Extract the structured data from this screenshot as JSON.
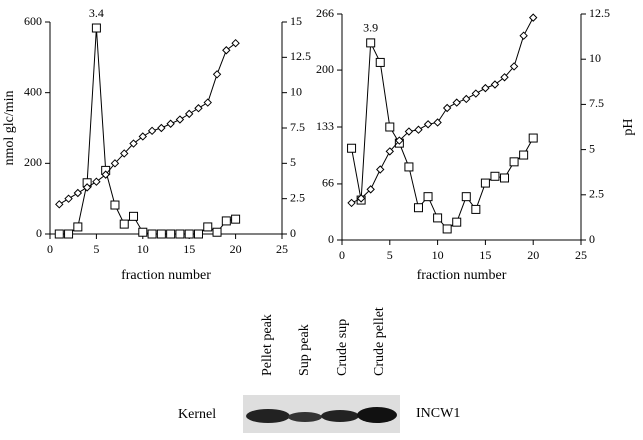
{
  "chart_data": [
    {
      "type": "line",
      "annotation": "3.4",
      "ylabel": "nmol glc/min",
      "xlabel": "fraction number",
      "xlim": [
        0,
        25
      ],
      "xticks": [
        0,
        5,
        10,
        15,
        20,
        25
      ],
      "ylim": [
        0,
        600
      ],
      "yticks": [
        0,
        200,
        400,
        600
      ],
      "y2lim": [
        0,
        15
      ],
      "y2ticks": [
        0,
        2.5,
        5,
        7.5,
        10,
        12.5,
        15
      ],
      "series": [
        {
          "marker": "square",
          "color": "#000",
          "x": [
            1,
            2,
            3,
            4,
            5,
            6,
            7,
            8,
            9,
            10,
            11,
            12,
            13,
            14,
            15,
            16,
            17,
            18,
            19,
            20
          ],
          "values": [
            0,
            0,
            20,
            145,
            583,
            180,
            82,
            28,
            50,
            5,
            0,
            0,
            0,
            0,
            0,
            0,
            20,
            5,
            37,
            42
          ]
        },
        {
          "marker": "diamond",
          "color": "#000",
          "axis": "y2",
          "x": [
            1,
            2,
            3,
            4,
            5,
            6,
            7,
            8,
            9,
            10,
            11,
            12,
            13,
            14,
            15,
            16,
            17,
            18,
            19,
            20
          ],
          "values": [
            2.1,
            2.5,
            2.9,
            3.3,
            3.7,
            4.2,
            5.0,
            5.7,
            6.4,
            6.9,
            7.3,
            7.5,
            7.8,
            8.1,
            8.5,
            8.9,
            9.3,
            11.3,
            13.0,
            13.5
          ]
        }
      ]
    },
    {
      "type": "line",
      "annotation": "3.9",
      "y2label": "pH",
      "xlabel": "fraction number",
      "xlim": [
        0,
        25
      ],
      "xticks": [
        0,
        5,
        10,
        15,
        20,
        25
      ],
      "ylim": [
        0,
        266
      ],
      "yticks": [
        0,
        66,
        133,
        200,
        266
      ],
      "y2lim": [
        0,
        12.5
      ],
      "y2ticks": [
        0,
        2.5,
        5,
        7.5,
        10,
        12.5
      ],
      "series": [
        {
          "marker": "square",
          "color": "#000",
          "x": [
            1,
            2,
            3,
            4,
            5,
            6,
            7,
            8,
            9,
            10,
            11,
            12,
            13,
            14,
            15,
            16,
            17,
            18,
            19,
            20
          ],
          "values": [
            108,
            47,
            232,
            209,
            133,
            114,
            86,
            38,
            51,
            26,
            13,
            21,
            51,
            36,
            67,
            75,
            73,
            92,
            100,
            120
          ]
        },
        {
          "marker": "diamond",
          "color": "#000",
          "axis": "y2",
          "x": [
            1,
            2,
            3,
            4,
            5,
            6,
            7,
            8,
            9,
            10,
            11,
            12,
            13,
            14,
            15,
            16,
            17,
            18,
            19,
            20
          ],
          "values": [
            2.05,
            2.3,
            2.8,
            3.9,
            4.9,
            5.5,
            6.0,
            6.1,
            6.4,
            6.5,
            7.3,
            7.6,
            7.8,
            8.1,
            8.4,
            8.6,
            9.0,
            9.6,
            11.3,
            12.3
          ]
        }
      ]
    }
  ],
  "blot": {
    "lanes": [
      "Pellet peak",
      "Sup peak",
      "Crude sup",
      "Crude pellet"
    ],
    "row_label": "Kernel",
    "band_label": "INCW1"
  }
}
